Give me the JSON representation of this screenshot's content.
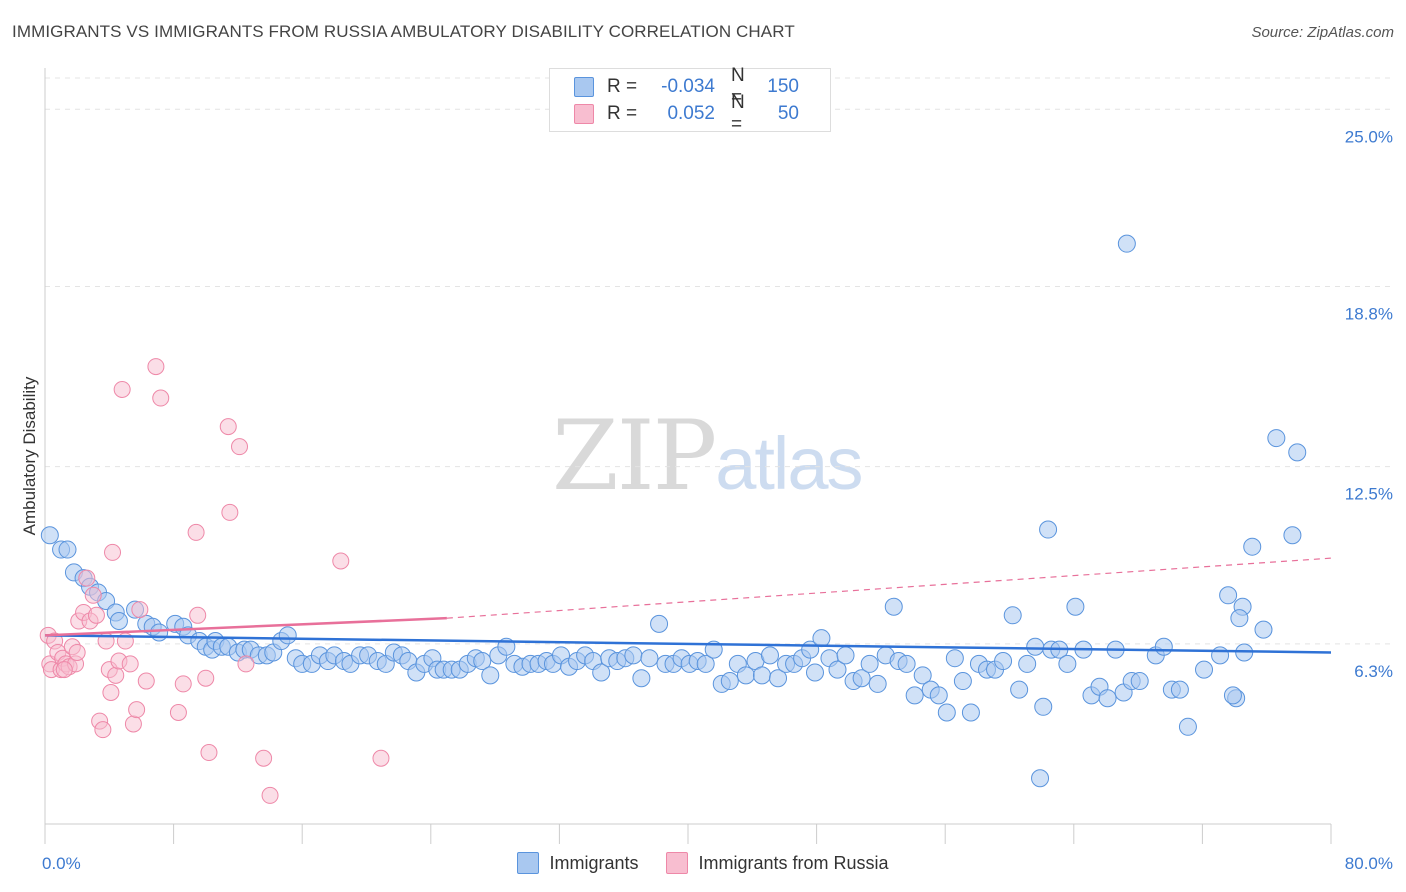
{
  "title": "IMMIGRANTS VS IMMIGRANTS FROM RUSSIA AMBULATORY DISABILITY CORRELATION CHART",
  "source": "Source: ZipAtlas.com",
  "watermark": {
    "zip": "ZIP",
    "atlas": "atlas"
  },
  "legend": {
    "r_label": "R =",
    "n_label": "N =",
    "series1": {
      "r": "-0.034",
      "n": "150"
    },
    "series2": {
      "r": "0.052",
      "n": "50"
    }
  },
  "bottom_legend": {
    "series1": "Immigrants",
    "series2": "Immigrants from Russia"
  },
  "colors": {
    "blue_fill": "#a9c8f0",
    "blue_stroke": "#5a94dd",
    "blue_line": "#2f72d6",
    "pink_fill": "#f8bed0",
    "pink_stroke": "#ee88a8",
    "pink_line": "#e8709a",
    "tick": "#3d7ad0"
  },
  "chart_data": {
    "type": "scatter",
    "title": "IMMIGRANTS VS IMMIGRANTS FROM RUSSIA AMBULATORY DISABILITY CORRELATION CHART",
    "xlabel": "",
    "ylabel": "Ambulatory Disability",
    "xlim": [
      0,
      80
    ],
    "ylim": [
      0,
      26.2
    ],
    "x_tick_labels": [
      "0.0%",
      "80.0%"
    ],
    "y_ticks": [
      6.3,
      12.5,
      18.8,
      25.0
    ],
    "y_tick_labels": [
      "6.3%",
      "12.5%",
      "18.8%",
      "25.0%"
    ],
    "grid": true,
    "legend_position": "top-center",
    "series": [
      {
        "name": "Immigrants",
        "R": -0.034,
        "N": 150,
        "trend": {
          "x": [
            0,
            80
          ],
          "y": [
            6.6,
            6.0
          ]
        },
        "points": [
          [
            0.3,
            10.1
          ],
          [
            1.0,
            9.6
          ],
          [
            1.4,
            9.6
          ],
          [
            1.8,
            8.8
          ],
          [
            2.4,
            8.6
          ],
          [
            2.8,
            8.3
          ],
          [
            3.3,
            8.1
          ],
          [
            3.8,
            7.8
          ],
          [
            4.4,
            7.4
          ],
          [
            4.6,
            7.1
          ],
          [
            5.6,
            7.5
          ],
          [
            6.3,
            7.0
          ],
          [
            6.7,
            6.9
          ],
          [
            7.1,
            6.7
          ],
          [
            8.1,
            7.0
          ],
          [
            8.6,
            6.9
          ],
          [
            8.9,
            6.6
          ],
          [
            9.6,
            6.4
          ],
          [
            10.0,
            6.2
          ],
          [
            10.4,
            6.1
          ],
          [
            10.6,
            6.4
          ],
          [
            11.0,
            6.2
          ],
          [
            11.4,
            6.2
          ],
          [
            12.0,
            6.0
          ],
          [
            12.4,
            6.1
          ],
          [
            12.8,
            6.1
          ],
          [
            13.3,
            5.9
          ],
          [
            13.8,
            5.9
          ],
          [
            14.2,
            6.0
          ],
          [
            14.7,
            6.4
          ],
          [
            15.1,
            6.6
          ],
          [
            15.6,
            5.8
          ],
          [
            16.0,
            5.6
          ],
          [
            16.6,
            5.6
          ],
          [
            17.1,
            5.9
          ],
          [
            17.6,
            5.7
          ],
          [
            18.0,
            5.9
          ],
          [
            18.6,
            5.7
          ],
          [
            19.0,
            5.6
          ],
          [
            19.6,
            5.9
          ],
          [
            20.1,
            5.9
          ],
          [
            20.7,
            5.7
          ],
          [
            21.2,
            5.6
          ],
          [
            21.7,
            6.0
          ],
          [
            22.2,
            5.9
          ],
          [
            22.6,
            5.7
          ],
          [
            23.1,
            5.3
          ],
          [
            23.6,
            5.6
          ],
          [
            24.1,
            5.8
          ],
          [
            24.4,
            5.4
          ],
          [
            24.8,
            5.4
          ],
          [
            25.3,
            5.4
          ],
          [
            25.8,
            5.4
          ],
          [
            26.3,
            5.6
          ],
          [
            26.8,
            5.8
          ],
          [
            27.2,
            5.7
          ],
          [
            27.7,
            5.2
          ],
          [
            28.2,
            5.9
          ],
          [
            28.7,
            6.2
          ],
          [
            29.2,
            5.6
          ],
          [
            29.7,
            5.5
          ],
          [
            30.2,
            5.6
          ],
          [
            30.7,
            5.6
          ],
          [
            31.2,
            5.7
          ],
          [
            31.6,
            5.6
          ],
          [
            32.1,
            5.9
          ],
          [
            32.6,
            5.5
          ],
          [
            33.1,
            5.7
          ],
          [
            33.6,
            5.9
          ],
          [
            34.1,
            5.7
          ],
          [
            34.6,
            5.3
          ],
          [
            35.1,
            5.8
          ],
          [
            35.6,
            5.7
          ],
          [
            36.1,
            5.8
          ],
          [
            36.6,
            5.9
          ],
          [
            37.1,
            5.1
          ],
          [
            37.6,
            5.8
          ],
          [
            38.2,
            7.0
          ],
          [
            38.6,
            5.6
          ],
          [
            39.1,
            5.6
          ],
          [
            39.6,
            5.8
          ],
          [
            40.1,
            5.6
          ],
          [
            40.6,
            5.7
          ],
          [
            41.1,
            5.6
          ],
          [
            41.6,
            6.1
          ],
          [
            42.1,
            4.9
          ],
          [
            42.6,
            5.0
          ],
          [
            43.1,
            5.6
          ],
          [
            43.6,
            5.2
          ],
          [
            44.2,
            5.7
          ],
          [
            44.6,
            5.2
          ],
          [
            45.1,
            5.9
          ],
          [
            45.6,
            5.1
          ],
          [
            46.1,
            5.6
          ],
          [
            46.6,
            5.6
          ],
          [
            47.1,
            5.8
          ],
          [
            47.6,
            6.1
          ],
          [
            47.9,
            5.3
          ],
          [
            48.3,
            6.5
          ],
          [
            48.8,
            5.8
          ],
          [
            49.3,
            5.4
          ],
          [
            49.8,
            5.9
          ],
          [
            50.3,
            5.0
          ],
          [
            50.8,
            5.1
          ],
          [
            51.3,
            5.6
          ],
          [
            51.8,
            4.9
          ],
          [
            52.3,
            5.9
          ],
          [
            52.8,
            7.6
          ],
          [
            53.1,
            5.7
          ],
          [
            53.6,
            5.6
          ],
          [
            54.1,
            4.5
          ],
          [
            54.6,
            5.2
          ],
          [
            55.1,
            4.7
          ],
          [
            55.6,
            4.5
          ],
          [
            56.1,
            3.9
          ],
          [
            56.6,
            5.8
          ],
          [
            57.1,
            5.0
          ],
          [
            57.6,
            3.9
          ],
          [
            58.1,
            5.6
          ],
          [
            58.6,
            5.4
          ],
          [
            59.1,
            5.4
          ],
          [
            59.6,
            5.7
          ],
          [
            60.2,
            7.3
          ],
          [
            60.6,
            4.7
          ],
          [
            61.1,
            5.6
          ],
          [
            61.6,
            6.2
          ],
          [
            62.1,
            4.1
          ],
          [
            62.6,
            6.1
          ],
          [
            63.1,
            6.1
          ],
          [
            63.6,
            5.6
          ],
          [
            64.1,
            7.6
          ],
          [
            64.6,
            6.1
          ],
          [
            65.1,
            4.5
          ],
          [
            65.6,
            4.8
          ],
          [
            66.1,
            4.4
          ],
          [
            66.6,
            6.1
          ],
          [
            67.1,
            4.6
          ],
          [
            67.6,
            5.0
          ],
          [
            68.1,
            5.0
          ],
          [
            69.1,
            5.9
          ],
          [
            70.1,
            4.7
          ],
          [
            71.1,
            3.4
          ],
          [
            72.1,
            5.4
          ],
          [
            73.1,
            5.9
          ],
          [
            74.1,
            4.4
          ],
          [
            74.6,
            6.0
          ],
          [
            67.3,
            20.3
          ],
          [
            62.4,
            10.3
          ],
          [
            61.9,
            1.6
          ],
          [
            69.6,
            6.2
          ],
          [
            70.6,
            4.7
          ],
          [
            73.6,
            8.0
          ],
          [
            73.9,
            4.5
          ],
          [
            74.5,
            7.6
          ],
          [
            74.3,
            7.2
          ],
          [
            75.1,
            9.7
          ],
          [
            75.8,
            6.8
          ],
          [
            76.6,
            13.5
          ],
          [
            77.6,
            10.1
          ],
          [
            77.9,
            13.0
          ]
        ]
      },
      {
        "name": "Immigrants from Russia",
        "R": 0.052,
        "N": 50,
        "trend": {
          "x": [
            0,
            25
          ],
          "y": [
            6.6,
            7.2
          ],
          "dashed_extension": {
            "x": [
              25,
              80
            ],
            "y": [
              7.2,
              9.3
            ]
          }
        },
        "points": [
          [
            0.2,
            6.6
          ],
          [
            0.3,
            5.6
          ],
          [
            0.4,
            5.4
          ],
          [
            0.6,
            6.4
          ],
          [
            0.8,
            6.0
          ],
          [
            1.0,
            5.4
          ],
          [
            1.1,
            5.8
          ],
          [
            1.3,
            5.6
          ],
          [
            1.5,
            5.5
          ],
          [
            1.7,
            6.2
          ],
          [
            1.9,
            5.6
          ],
          [
            2.1,
            7.1
          ],
          [
            2.4,
            7.4
          ],
          [
            2.6,
            8.6
          ],
          [
            2.8,
            7.1
          ],
          [
            3.0,
            8.0
          ],
          [
            3.2,
            7.3
          ],
          [
            3.4,
            3.6
          ],
          [
            3.6,
            3.3
          ],
          [
            3.8,
            6.4
          ],
          [
            4.0,
            5.4
          ],
          [
            4.2,
            9.5
          ],
          [
            4.4,
            5.2
          ],
          [
            4.6,
            5.7
          ],
          [
            4.8,
            15.2
          ],
          [
            5.0,
            6.4
          ],
          [
            5.3,
            5.6
          ],
          [
            5.5,
            3.5
          ],
          [
            5.7,
            4.0
          ],
          [
            5.9,
            7.5
          ],
          [
            6.3,
            5.0
          ],
          [
            6.9,
            16.0
          ],
          [
            7.2,
            14.9
          ],
          [
            8.3,
            3.9
          ],
          [
            8.6,
            4.9
          ],
          [
            9.4,
            10.2
          ],
          [
            9.5,
            7.3
          ],
          [
            10.0,
            5.1
          ],
          [
            10.2,
            2.5
          ],
          [
            11.4,
            13.9
          ],
          [
            11.5,
            10.9
          ],
          [
            12.1,
            13.2
          ],
          [
            12.5,
            5.6
          ],
          [
            13.6,
            2.3
          ],
          [
            14.0,
            1.0
          ],
          [
            18.4,
            9.2
          ],
          [
            20.9,
            2.3
          ],
          [
            1.2,
            5.4
          ],
          [
            2.0,
            6.0
          ],
          [
            4.1,
            4.6
          ]
        ]
      }
    ]
  }
}
